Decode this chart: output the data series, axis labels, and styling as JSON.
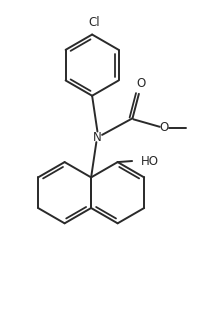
{
  "bg_color": "#ffffff",
  "line_color": "#2a2a2a",
  "line_width": 1.4,
  "fig_width": 2.14,
  "fig_height": 3.11,
  "dpi": 100,
  "xlim": [
    0,
    10
  ],
  "ylim": [
    0,
    14.5
  ],
  "r_hex": 1.44,
  "cl_label": "Cl",
  "n_label": "N",
  "o_label": "O",
  "ho_label": "HO",
  "o_carbonyl_label": "O"
}
